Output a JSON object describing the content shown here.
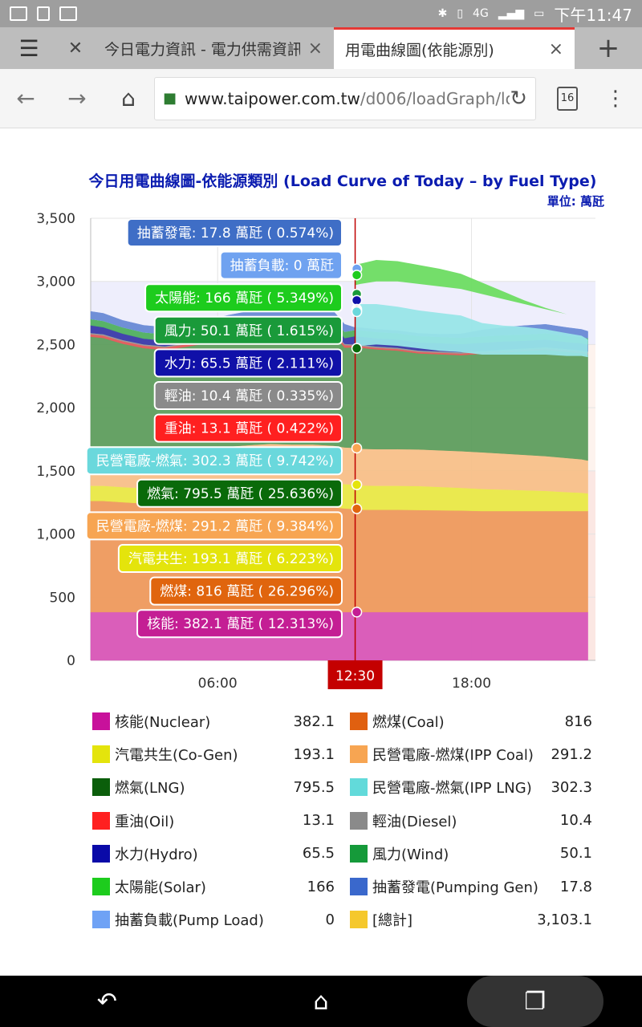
{
  "statusbar": {
    "time": "下午11:47",
    "network": "4G"
  },
  "tabs": [
    {
      "title": "今日電力資訊 - 電力供需資訊",
      "close": "×"
    },
    {
      "title": "用電曲線圖(依能源別)",
      "close": "×"
    }
  ],
  "toolbar": {
    "url_host": "www.taipower.com.tw",
    "url_path": "/d006/loadGraph/lo",
    "tab_count": "16"
  },
  "chart_data": {
    "type": "area",
    "title": "今日用電曲線圖-依能源類別 (Load Curve of Today – by Fuel Type)",
    "unit_label": "單位: 萬瓩",
    "ylim": [
      0,
      3500
    ],
    "yticks": [
      "0",
      "500",
      "1,000",
      "1,500",
      "2,000",
      "2,500",
      "3,000",
      "3,500"
    ],
    "xlim_hours": [
      0.0,
      23.5
    ],
    "xticks": [
      {
        "h": 6,
        "label": "06:00"
      },
      {
        "h": 18,
        "label": "18:00"
      }
    ],
    "cursor": {
      "h": 12.5,
      "label": "12:30"
    },
    "x": [
      0.0,
      0.6,
      1.5,
      2.5,
      3.5,
      4.5,
      5.5,
      6.5,
      7.5,
      8.5,
      9.5,
      10.5,
      11.5,
      12.0,
      12.5,
      12.75,
      13.5,
      14.5,
      15.5,
      16.5,
      17.5,
      18.5,
      19.5,
      20.5,
      21.5,
      22.5,
      23.2,
      23.5
    ],
    "series": [
      {
        "name": "核能(Nuclear)",
        "color": "#d957b8",
        "values": [
          382,
          382,
          382,
          382,
          382,
          382,
          382,
          382,
          382,
          382,
          382,
          382,
          382,
          382,
          382,
          382,
          382,
          382,
          382,
          382,
          382,
          382,
          382,
          382,
          382,
          382,
          382,
          382
        ]
      },
      {
        "name": "燃煤(Coal)",
        "color": "#ef9b5e",
        "values": [
          880,
          880,
          870,
          860,
          860,
          860,
          860,
          860,
          850,
          850,
          840,
          840,
          830,
          820,
          816,
          810,
          810,
          810,
          808,
          806,
          804,
          800,
          800,
          800,
          800,
          800,
          800,
          800
        ]
      },
      {
        "name": "汽電共生(Co-Gen)",
        "color": "#eaea48",
        "values": [
          120,
          120,
          120,
          120,
          125,
          130,
          140,
          160,
          180,
          190,
          195,
          195,
          195,
          193,
          193,
          193,
          190,
          190,
          190,
          185,
          180,
          175,
          170,
          165,
          160,
          150,
          145,
          140
        ]
      },
      {
        "name": "燃氣(LNG)",
        "color": "#eeeb72",
        "values": [
          0,
          0,
          0,
          0,
          0,
          0,
          0,
          0,
          0,
          0,
          0,
          0,
          0,
          0,
          0,
          0,
          0,
          0,
          0,
          0,
          0,
          0,
          0,
          0,
          0,
          0,
          0,
          0
        ]
      },
      {
        "name": "民營電廠-燃煤(IPP Coal)",
        "color": "#f8c18a",
        "values": [
          300,
          300,
          295,
          290,
          290,
          290,
          290,
          290,
          292,
          292,
          292,
          292,
          292,
          291,
          291,
          290,
          290,
          290,
          290,
          290,
          290,
          290,
          285,
          280,
          275,
          270,
          265,
          260
        ]
      },
      {
        "name": "民營電廠-燃氣(IPP LNG)",
        "color": "#5e9e5e",
        "values": [
          880,
          870,
          840,
          820,
          800,
          820,
          840,
          860,
          880,
          880,
          880,
          880,
          880,
          790,
          796,
          800,
          790,
          780,
          760,
          760,
          760,
          780,
          800,
          820,
          840,
          840,
          840,
          840
        ]
      },
      {
        "name": "重油(Oil)",
        "color": "#e25a5a",
        "values": [
          20,
          20,
          20,
          20,
          20,
          20,
          20,
          20,
          20,
          20,
          20,
          20,
          20,
          20,
          13,
          13,
          13,
          13,
          13,
          13,
          13,
          13,
          13,
          13,
          13,
          13,
          13,
          13
        ]
      },
      {
        "name": "輕油(Diesel)",
        "color": "#999999",
        "values": [
          10,
          10,
          10,
          10,
          10,
          10,
          10,
          10,
          10,
          10,
          10,
          10,
          10,
          10,
          10,
          10,
          10,
          10,
          10,
          10,
          10,
          10,
          10,
          10,
          10,
          10,
          10,
          10
        ]
      },
      {
        "name": "水力(Hydro)",
        "color": "#3a3aaa",
        "values": [
          60,
          55,
          50,
          45,
          45,
          45,
          45,
          45,
          45,
          45,
          45,
          45,
          45,
          45,
          65,
          65,
          65,
          65,
          65,
          65,
          65,
          65,
          65,
          60,
          60,
          55,
          55,
          55
        ]
      },
      {
        "name": "風力(Wind)",
        "color": "#50b060",
        "values": [
          50,
          50,
          50,
          50,
          50,
          50,
          50,
          50,
          50,
          50,
          50,
          50,
          50,
          50,
          50,
          50,
          50,
          50,
          50,
          50,
          50,
          50,
          50,
          50,
          50,
          50,
          50,
          50
        ]
      },
      {
        "name": "太陽能(Solar)",
        "color": "#98e5e8",
        "values": [
          0,
          0,
          0,
          0,
          0,
          0,
          0,
          0,
          0,
          0,
          0,
          0,
          0,
          0,
          0,
          0,
          0,
          0,
          0,
          0,
          0,
          0,
          0,
          0,
          0,
          0,
          0,
          0
        ]
      },
      {
        "name": "抽蓄發電(Pumping Gen)",
        "color": "#6a8ad6",
        "values": [
          60,
          60,
          55,
          55,
          55,
          55,
          55,
          55,
          55,
          55,
          55,
          55,
          55,
          60,
          18,
          20,
          20,
          20,
          20,
          20,
          30,
          50,
          60,
          70,
          70,
          65,
          60,
          55
        ]
      }
    ],
    "overlay": [
      {
        "name": "民營電廠-燃氣(IPP LNG) band",
        "color": "#98e5e8",
        "x": [
          12.5,
          12.75,
          13.5,
          14.5,
          15.5,
          16.5,
          17.5,
          18.5,
          19.5,
          20.5,
          21.5,
          22.5,
          23.2,
          23.5
        ],
        "base": [
          2490,
          2490,
          2500,
          2490,
          2470,
          2450,
          2440,
          2420,
          2420,
          2420,
          2420,
          2410,
          2410,
          2400
        ],
        "values": [
          320,
          330,
          320,
          310,
          300,
          300,
          290,
          250,
          230,
          220,
          200,
          180,
          160,
          140
        ]
      },
      {
        "name": "太陽能(Solar) band",
        "color": "#6ddc62",
        "x": [
          12.5,
          12.75,
          13.5,
          14.5,
          15.5,
          16.5,
          17.5,
          18.5,
          19.5,
          20.5,
          21.5,
          22.5,
          23.2,
          23.5
        ],
        "base": [
          2970,
          2980,
          3000,
          3000,
          2980,
          2960,
          2940,
          2900,
          2860,
          2820,
          2780,
          2740,
          2700,
          2680
        ],
        "values": [
          166,
          160,
          170,
          160,
          150,
          140,
          120,
          90,
          60,
          30,
          10,
          0,
          0,
          0
        ]
      }
    ],
    "tooltips": [
      {
        "label": "抽蓄發電: 17.8 萬瓩 ( 0.574%)",
        "bg": "#3f6ec6",
        "fg": "#ffffff",
        "y": 3100
      },
      {
        "label": "抽蓄負載: 0 萬瓩",
        "bg": "#6fa2f0",
        "fg": "#ffffff",
        "y": 3100
      },
      {
        "label": "太陽能: 166 萬瓩 ( 5.349%)",
        "bg": "#1dcc1d",
        "fg": "#ffffff",
        "y": 3050
      },
      {
        "label": "風力: 50.1 萬瓩 ( 1.615%)",
        "bg": "#1a9a3a",
        "fg": "#ffffff",
        "y": 2900
      },
      {
        "label": "水力: 65.5 萬瓩 ( 2.111%)",
        "bg": "#1010a8",
        "fg": "#ffffff",
        "y": 2850
      },
      {
        "label": "輕油: 10.4 萬瓩 ( 0.335%)",
        "bg": "#8a8a8a",
        "fg": "#ffffff",
        "y": 2780
      },
      {
        "label": "重油: 13.1 萬瓩 ( 0.422%)",
        "bg": "#ff2020",
        "fg": "#ffffff",
        "y": 2770
      },
      {
        "label": "民營電廠-燃氣: 302.3 萬瓩 ( 9.742%)",
        "bg": "#6ad8dc",
        "fg": "#ffffff",
        "y": 2760
      },
      {
        "label": "燃氣: 795.5 萬瓩 ( 25.636%)",
        "bg": "#0a6a0a",
        "fg": "#ffffff",
        "y": 2470
      },
      {
        "label": "民營電廠-燃煤: 291.2 萬瓩 ( 9.384%)",
        "bg": "#f7a552",
        "fg": "#ffffff",
        "y": 1680
      },
      {
        "label": "汽電共生: 193.1 萬瓩 ( 6.223%)",
        "bg": "#e4e40c",
        "fg": "#ffffff",
        "y": 1390
      },
      {
        "label": "燃煤: 816 萬瓩 ( 26.296%)",
        "bg": "#e0650e",
        "fg": "#ffffff",
        "y": 1200
      },
      {
        "label": "核能: 382.1 萬瓩 ( 12.313%)",
        "bg": "#c41e94",
        "fg": "#ffffff",
        "y": 382
      }
    ]
  },
  "legend": [
    {
      "label": "核能(Nuclear)",
      "value": "382.1",
      "color": "#c8119b"
    },
    {
      "label": "燃煤(Coal)",
      "value": "816",
      "color": "#e06010"
    },
    {
      "label": "汽電共生(Co-Gen)",
      "value": "193.1",
      "color": "#e4e40c"
    },
    {
      "label": "民營電廠-燃煤(IPP Coal)",
      "value": "291.2",
      "color": "#f7a552"
    },
    {
      "label": "燃氣(LNG)",
      "value": "795.5",
      "color": "#0b5e0b"
    },
    {
      "label": "民營電廠-燃氣(IPP LNG)",
      "value": "302.3",
      "color": "#62dada"
    },
    {
      "label": "重油(Oil)",
      "value": "13.1",
      "color": "#ff2020"
    },
    {
      "label": "輕油(Diesel)",
      "value": "10.4",
      "color": "#8a8a8a"
    },
    {
      "label": "水力(Hydro)",
      "value": "65.5",
      "color": "#0a0aa8"
    },
    {
      "label": "風力(Wind)",
      "value": "50.1",
      "color": "#159a3a"
    },
    {
      "label": "太陽能(Solar)",
      "value": "166",
      "color": "#1dcc1d"
    },
    {
      "label": "抽蓄發電(Pumping Gen)",
      "value": "17.8",
      "color": "#3a68cc"
    },
    {
      "label": "抽蓄負載(Pump Load)",
      "value": "0",
      "color": "#6fa2f5"
    },
    {
      "label": "[總計]",
      "value": "3,103.1",
      "color": "#f5c82c"
    }
  ]
}
